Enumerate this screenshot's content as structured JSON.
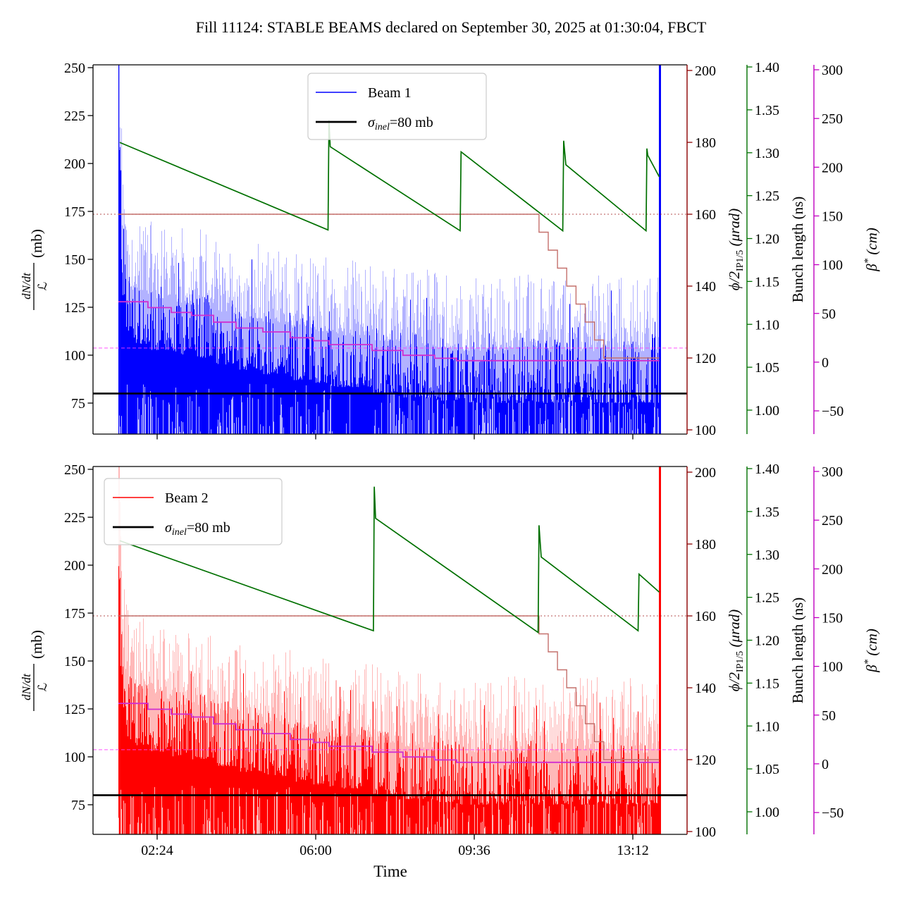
{
  "title": "Fill 11124: STABLE BEAMS declared on September 30, 2025 at 01:30:04, FBCT",
  "colors": {
    "beam1": "#0000ff",
    "beam1_pale": "rgba(0,0,255,0.30)",
    "beam2": "#ff0000",
    "beam2_pale": "rgba(255,0,0,0.28)",
    "bunch": "#007000",
    "crossing_axis": "#8b0000",
    "crossing_curve": "#c4706c",
    "crossing_dotted": "rgba(165,42,42,0.65)",
    "beta_axis": "#bf00bf",
    "beta_curve": "#d02ed0",
    "beta_dashed": "rgba(255,60,255,0.70)",
    "sigma_line": "#000000",
    "legend_border": "#cccccc"
  },
  "chart_data": {
    "type": "line",
    "title": "Fill 11124: STABLE BEAMS declared on September 30, 2025 at 01:30:04, FBCT",
    "xlabel": "Time",
    "x_ticks": {
      "labels": [
        "02:24",
        "06:00",
        "09:36",
        "13:12"
      ],
      "hours": [
        2.4,
        6.0,
        9.6,
        13.2
      ]
    },
    "x_range_hours": [
      0.94,
      14.43
    ],
    "axes": {
      "rate": {
        "label": {
          "num": "dN/dt",
          "den": "ℒ",
          "unit": " (mb)"
        },
        "ticks": [
          250,
          225,
          200,
          175,
          150,
          125,
          100,
          75
        ],
        "color": "#000000"
      },
      "crossing": {
        "label": {
          "main": "ϕ/2",
          "sub": "IP1/5",
          "unit": " (μrad)"
        },
        "tick_labels": [
          "200",
          "180",
          "160",
          "140",
          "120",
          "100"
        ],
        "ticks": [
          200,
          180,
          160,
          140,
          120,
          100
        ],
        "color": "#8b0000"
      },
      "bunch": {
        "label": "Bunch length (ns)",
        "tick_labels": [
          "1.40",
          "1.35",
          "1.30",
          "1.25",
          "1.20",
          "1.15",
          "1.10",
          "1.05",
          "1.00"
        ],
        "ticks": [
          1.4,
          1.35,
          1.3,
          1.25,
          1.2,
          1.15,
          1.1,
          1.05,
          1.0
        ],
        "color": "#007000"
      },
      "beta": {
        "label": {
          "main": "β",
          "sup": "*",
          "unit": " (cm)"
        },
        "tick_labels": [
          "300",
          "250",
          "200",
          "150",
          "100",
          "50",
          "0",
          "−50"
        ],
        "ticks": [
          300,
          250,
          200,
          150,
          100,
          50,
          0,
          -50
        ],
        "color": "#bf00bf"
      }
    },
    "reference_lines": {
      "sigma_inel_mb": 80,
      "crossing_urad": 160,
      "beta_cm": 14.5
    },
    "crossing_angle_steps": {
      "hours": [
        1.52,
        11.07,
        11.28,
        11.49,
        11.7,
        11.91,
        12.12,
        12.33,
        12.54
      ],
      "urad": [
        160,
        155,
        150,
        145,
        140,
        135,
        130,
        125,
        120
      ],
      "end_hour": 13.8
    },
    "beta_leveling_steps": {
      "hours": [
        1.52,
        2.19,
        2.72,
        3.18,
        3.68,
        4.19,
        4.8,
        5.42,
        5.95,
        6.3,
        7.28,
        7.98,
        8.7,
        9.2
      ],
      "cm": [
        62,
        56,
        51,
        48,
        41,
        35,
        31,
        25,
        22,
        18,
        12,
        7,
        4,
        1.5
      ],
      "mean_rate_mb": [
        127.8,
        124.7,
        122.2,
        120.7,
        117.1,
        114.1,
        112.0,
        109.0,
        107.5,
        105.4,
        102.4,
        99.9,
        98.3,
        97.1
      ],
      "end_hour": 13.8
    },
    "panels": [
      {
        "id": "beam1",
        "legend_beam": "Beam 1",
        "legend_sigma": {
          "sym": "σ",
          "sub": "inel",
          "rest": "=80 mb"
        },
        "bunch_length_ns": {
          "hours": [
            1.55,
            6.28,
            6.3,
            6.33,
            9.28,
            9.3,
            11.61,
            11.63,
            11.68,
            13.5,
            13.52,
            13.54,
            13.8
          ],
          "ns": [
            1.312,
            1.21,
            1.338,
            1.307,
            1.209,
            1.301,
            1.209,
            1.314,
            1.286,
            1.209,
            1.305,
            1.297,
            1.272
          ]
        },
        "noise_seed": 7,
        "data_start_hour": 1.52,
        "data_end_hour": 13.77
      },
      {
        "id": "beam2",
        "legend_beam": "Beam 2",
        "legend_sigma": {
          "sym": "σ",
          "sub": "inel",
          "rest": "=80 mb"
        },
        "bunch_length_ns": {
          "hours": [
            1.55,
            7.31,
            7.33,
            7.36,
            11.05,
            11.07,
            11.12,
            13.32,
            13.34,
            13.8
          ],
          "ns": [
            1.316,
            1.211,
            1.379,
            1.342,
            1.209,
            1.334,
            1.297,
            1.211,
            1.277,
            1.256
          ]
        },
        "noise_seed": 13,
        "data_start_hour": 1.52,
        "data_end_hour": 13.77
      }
    ]
  }
}
